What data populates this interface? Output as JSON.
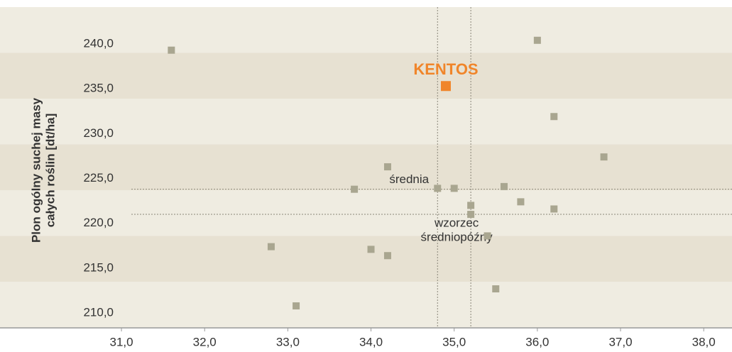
{
  "chart_data": {
    "type": "scatter",
    "y_label": [
      "Plon ogólny suchej masy",
      "całych roślin [dt/ha]"
    ],
    "x": [
      31.6,
      36.0,
      36.2,
      36.8,
      34.2,
      33.8,
      34.8,
      35.0,
      35.6,
      35.8,
      36.2,
      35.2,
      35.2,
      32.8,
      34.0,
      34.2,
      35.4,
      35.5,
      33.1
    ],
    "values": [
      239.3,
      240.4,
      231.9,
      227.4,
      226.3,
      223.8,
      223.9,
      223.9,
      224.1,
      222.4,
      221.6,
      222.0,
      221.0,
      217.4,
      217.1,
      216.4,
      218.6,
      212.7,
      210.8
    ],
    "color": "#a9a690",
    "highlight": {
      "label": "KENTOS",
      "x": 34.9,
      "y": 235.3,
      "color": "#f0852a"
    },
    "reference_lines": [
      {
        "label": [
          "średnia"
        ],
        "x": 34.8,
        "y": 223.8
      },
      {
        "label": [
          "wzorzec",
          "średniopóźny"
        ],
        "x": 35.2,
        "y": 221.0
      }
    ],
    "xlim": [
      29.54,
      38.34
    ],
    "ylim": [
      208.35,
      244.1
    ],
    "xticks": [
      {
        "value": 31,
        "label": "31,0"
      },
      {
        "value": 32,
        "label": "32,0"
      },
      {
        "value": 33,
        "label": "33,0"
      },
      {
        "value": 34,
        "label": "34,0"
      },
      {
        "value": 35,
        "label": "35,0"
      },
      {
        "value": 36,
        "label": "36,0"
      },
      {
        "value": 37,
        "label": "37,0"
      },
      {
        "value": 38,
        "label": "38,0"
      }
    ],
    "yticks": [
      {
        "value": 210,
        "label": "210,0"
      },
      {
        "value": 215,
        "label": "215,0"
      },
      {
        "value": 220,
        "label": "220,0"
      },
      {
        "value": 225,
        "label": "225,0"
      },
      {
        "value": 230,
        "label": "230,0"
      },
      {
        "value": 235,
        "label": "235,0"
      },
      {
        "value": 240,
        "label": "240,0"
      }
    ]
  }
}
